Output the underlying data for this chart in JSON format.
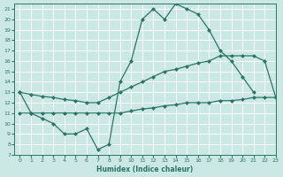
{
  "xlabel": "Humidex (Indice chaleur)",
  "bg_color": "#cce8e5",
  "grid_color": "#ffffff",
  "line_color": "#2a7567",
  "xlim": [
    -0.5,
    23
  ],
  "ylim": [
    7,
    21.5
  ],
  "xticks": [
    0,
    1,
    2,
    3,
    4,
    5,
    6,
    7,
    8,
    9,
    10,
    11,
    12,
    13,
    14,
    15,
    16,
    17,
    18,
    19,
    20,
    21,
    22,
    23
  ],
  "yticks": [
    7,
    8,
    9,
    10,
    11,
    12,
    13,
    14,
    15,
    16,
    17,
    18,
    19,
    20,
    21
  ],
  "line1_x": [
    0,
    1,
    2,
    3,
    4,
    5,
    6,
    7,
    8,
    9,
    10,
    11,
    12,
    13,
    14,
    15,
    16,
    17,
    18,
    19,
    20,
    21
  ],
  "line1_y": [
    13,
    11,
    10.5,
    10,
    9,
    9,
    9.5,
    7.5,
    8.0,
    14,
    16,
    20,
    21,
    20,
    21.5,
    21,
    20.5,
    19,
    17,
    16,
    14.5,
    13
  ],
  "line2_x": [
    0,
    1,
    2,
    3,
    4,
    5,
    6,
    7,
    8,
    9,
    10,
    11,
    12,
    13,
    14,
    15,
    16,
    17,
    18,
    19,
    20,
    21,
    22,
    23
  ],
  "line2_y": [
    13,
    12.8,
    12.6,
    12.5,
    12.3,
    12.2,
    12.0,
    12.0,
    12.5,
    13,
    13.5,
    14,
    14.5,
    15,
    15.2,
    15.5,
    15.8,
    16.0,
    16.5,
    16.5,
    16.5,
    16.5,
    16.0,
    12.5
  ],
  "line3_x": [
    0,
    1,
    2,
    3,
    4,
    5,
    6,
    7,
    8,
    9,
    10,
    11,
    12,
    13,
    14,
    15,
    16,
    17,
    18,
    19,
    20,
    21,
    22,
    23
  ],
  "line3_y": [
    11,
    11,
    11,
    11,
    11,
    11,
    11,
    11,
    11,
    11,
    11.2,
    11.4,
    11.5,
    11.7,
    11.8,
    12.0,
    12.0,
    12.0,
    12.2,
    12.2,
    12.3,
    12.5,
    12.5,
    12.5
  ]
}
